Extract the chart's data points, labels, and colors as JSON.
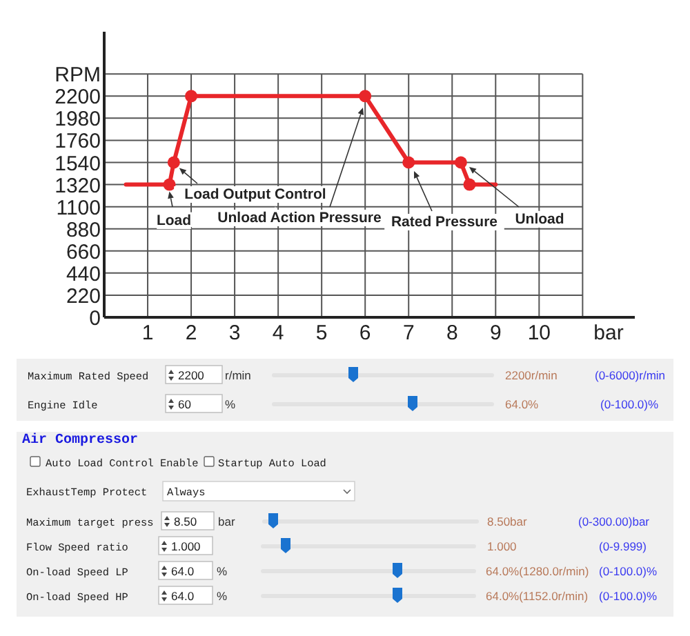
{
  "chart_data": [
    {
      "type": "line",
      "xlabel": "bar",
      "ylabel": "RPM",
      "xlim": [
        0,
        12.2
      ],
      "ylim": [
        0,
        2840
      ],
      "xticks": [
        1,
        2,
        3,
        4,
        5,
        6,
        7,
        8,
        9,
        10,
        {
          "value": 11,
          "label": null
        }
      ],
      "yticks": [
        0,
        220,
        440,
        660,
        880,
        1100,
        1320,
        1540,
        1760,
        1980,
        2200,
        {
          "value": 2420,
          "label": null
        }
      ],
      "grid": true,
      "series": [
        {
          "type": "line",
          "color": "#e8262a",
          "x": [
            0.5,
            1.5,
            1.6,
            2,
            6,
            7,
            8.2,
            8.4,
            9
          ],
          "values": [
            1320,
            1320,
            1540,
            2200,
            2200,
            1540,
            1540,
            1320,
            1320
          ],
          "marker": "none"
        },
        {
          "type": "scatter",
          "color": "#e8262a",
          "x": [
            1.5,
            1.6,
            2,
            6,
            7,
            8.2,
            8.4
          ],
          "values": [
            1320,
            1540,
            2200,
            2200,
            1540,
            1540,
            1320
          ],
          "marker": "circle"
        }
      ],
      "annotations": [
        {
          "text": "Load",
          "x": 1.5,
          "y": 1320
        },
        {
          "text": "Load Output Control",
          "x": 1.6,
          "y": 1540
        },
        "Unload Action Pressure",
        "Rated Pressure",
        "Unload"
      ]
    },
    {
      "type": "other",
      "annotations": [
        "Maximum Rated Speed",
        "2200",
        "r/min",
        "2200r/min",
        "(0-6000)r/min",
        "Engine Idle",
        "60",
        "%",
        "64.0%",
        "(0-100.0)%",
        "Air Compressor",
        "Auto Load Control Enable",
        "Startup Auto Load",
        "ExhaustTemp Protect",
        "Always",
        "Maximum target press",
        "8.50",
        "bar",
        "8.50bar",
        "(0-300.00)bar",
        "Flow Speed ratio",
        "1.000",
        "1.000",
        "(0-9.999)",
        "On-load Speed LP",
        "64.0",
        "%",
        "64.0%(1280.0r/min)",
        "(0-100.0)%",
        "On-load Speed HP",
        "64.0",
        "%",
        "64.0%(1152.0r/min)",
        "(0-100.0)%"
      ]
    }
  ]
}
